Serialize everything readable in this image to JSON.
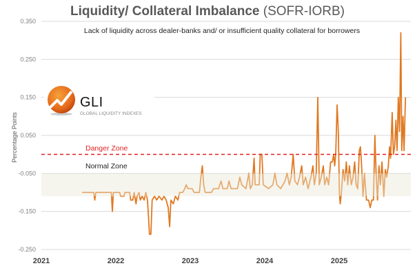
{
  "chart_data": {
    "type": "line",
    "title": "Liquidity/ Collateral Imbalance",
    "title_suffix": "(SOFR-IORB)",
    "subtitle": "Lack of liquidity across dealer-banks and/ or insufficient quality collateral for borrowers",
    "xlabel": "",
    "ylabel": "Percentage Points",
    "xlim": [
      "2021-01-01",
      "2026-01-01"
    ],
    "ylim": [
      -0.25,
      0.35
    ],
    "x_ticks": [
      "2021",
      "2022",
      "2023",
      "2024",
      "2025"
    ],
    "y_ticks": [
      "0.350",
      "0.250",
      "0.150",
      "0.050",
      "-0.050",
      "-0.150",
      "-0.250"
    ],
    "y_tick_values": [
      0.35,
      0.25,
      0.15,
      0.05,
      -0.05,
      -0.15,
      -0.25
    ],
    "grid": "horizontal",
    "legend": "none",
    "colors": {
      "series": "#e07820",
      "danger": "#e02020",
      "band": "#ebe8d8",
      "grid": "#d9d9d9",
      "title": "#595959"
    },
    "annotations": {
      "danger_zone": {
        "label": "Danger Zone",
        "y": 0.0
      },
      "normal_zone": {
        "label": "Normal Zone",
        "y_range": [
          -0.11,
          -0.05
        ]
      }
    },
    "series": [
      {
        "points": [
          [
            "2021-07-20",
            -0.1
          ],
          [
            "2021-09-15",
            -0.1
          ],
          [
            "2021-09-20",
            -0.12
          ],
          [
            "2021-09-25",
            -0.1
          ],
          [
            "2021-12-10",
            -0.1
          ],
          [
            "2021-12-15",
            -0.15
          ],
          [
            "2021-12-20",
            -0.1
          ],
          [
            "2022-01-20",
            -0.1
          ],
          [
            "2022-01-25",
            -0.11
          ],
          [
            "2022-02-10",
            -0.11
          ],
          [
            "2022-02-15",
            -0.1
          ],
          [
            "2022-03-10",
            -0.1
          ],
          [
            "2022-03-15",
            -0.12
          ],
          [
            "2022-03-25",
            -0.12
          ],
          [
            "2022-04-01",
            -0.1
          ],
          [
            "2022-04-10",
            -0.13
          ],
          [
            "2022-04-15",
            -0.11
          ],
          [
            "2022-04-25",
            -0.1
          ],
          [
            "2022-05-01",
            -0.12
          ],
          [
            "2022-05-10",
            -0.11
          ],
          [
            "2022-05-20",
            -0.12
          ],
          [
            "2022-05-28",
            -0.1
          ],
          [
            "2022-06-05",
            -0.12
          ],
          [
            "2022-06-10",
            -0.16
          ],
          [
            "2022-06-15",
            -0.21
          ],
          [
            "2022-06-22",
            -0.21
          ],
          [
            "2022-06-28",
            -0.12
          ],
          [
            "2022-07-10",
            -0.11
          ],
          [
            "2022-07-20",
            -0.12
          ],
          [
            "2022-08-01",
            -0.11
          ],
          [
            "2022-08-15",
            -0.12
          ],
          [
            "2022-08-25",
            -0.11
          ],
          [
            "2022-09-05",
            -0.12
          ],
          [
            "2022-09-15",
            -0.14
          ],
          [
            "2022-09-22",
            -0.19
          ],
          [
            "2022-09-28",
            -0.12
          ],
          [
            "2022-10-10",
            -0.13
          ],
          [
            "2022-10-20",
            -0.11
          ],
          [
            "2022-11-01",
            -0.12
          ],
          [
            "2022-11-10",
            -0.1
          ],
          [
            "2022-11-25",
            -0.1
          ],
          [
            "2022-12-05",
            -0.09
          ],
          [
            "2022-12-12",
            -0.08
          ],
          [
            "2022-12-20",
            -0.09
          ],
          [
            "2023-01-10",
            -0.09
          ],
          [
            "2023-01-20",
            -0.1
          ],
          [
            "2023-02-15",
            -0.1
          ],
          [
            "2023-02-22",
            -0.06
          ],
          [
            "2023-03-01",
            -0.03
          ],
          [
            "2023-03-08",
            -0.08
          ],
          [
            "2023-03-15",
            -0.1
          ],
          [
            "2023-04-15",
            -0.1
          ],
          [
            "2023-04-25",
            -0.09
          ],
          [
            "2023-05-20",
            -0.09
          ],
          [
            "2023-06-01",
            -0.07
          ],
          [
            "2023-06-10",
            -0.09
          ],
          [
            "2023-07-01",
            -0.09
          ],
          [
            "2023-07-10",
            -0.07
          ],
          [
            "2023-07-20",
            -0.09
          ],
          [
            "2023-08-20",
            -0.09
          ],
          [
            "2023-09-01",
            -0.06
          ],
          [
            "2023-09-10",
            -0.08
          ],
          [
            "2023-10-01",
            -0.09
          ],
          [
            "2023-10-15",
            -0.05
          ],
          [
            "2023-10-22",
            -0.09
          ],
          [
            "2023-11-01",
            -0.08
          ],
          [
            "2023-11-10",
            -0.01
          ],
          [
            "2023-11-15",
            -0.08
          ],
          [
            "2023-12-05",
            -0.08
          ],
          [
            "2023-12-10",
            0.0
          ],
          [
            "2023-12-18",
            0.0
          ],
          [
            "2023-12-25",
            -0.08
          ],
          [
            "2024-01-20",
            -0.09
          ],
          [
            "2024-02-10",
            -0.08
          ],
          [
            "2024-02-20",
            -0.05
          ],
          [
            "2024-03-01",
            -0.08
          ],
          [
            "2024-03-20",
            -0.09
          ],
          [
            "2024-04-10",
            -0.07
          ],
          [
            "2024-04-20",
            -0.05
          ],
          [
            "2024-05-01",
            -0.08
          ],
          [
            "2024-05-10",
            -0.06
          ],
          [
            "2024-05-20",
            0.0
          ],
          [
            "2024-05-28",
            -0.07
          ],
          [
            "2024-06-10",
            -0.08
          ],
          [
            "2024-06-20",
            -0.06
          ],
          [
            "2024-07-01",
            -0.03
          ],
          [
            "2024-07-08",
            -0.08
          ],
          [
            "2024-07-20",
            -0.06
          ],
          [
            "2024-08-01",
            -0.09
          ],
          [
            "2024-08-15",
            -0.06
          ],
          [
            "2024-08-25",
            -0.03
          ],
          [
            "2024-09-01",
            -0.08
          ],
          [
            "2024-09-10",
            -0.05
          ],
          [
            "2024-09-18",
            0.15
          ],
          [
            "2024-09-25",
            -0.08
          ],
          [
            "2024-10-05",
            -0.06
          ],
          [
            "2024-10-15",
            -0.03
          ],
          [
            "2024-10-22",
            -0.08
          ],
          [
            "2024-11-01",
            -0.06
          ],
          [
            "2024-11-10",
            -0.08
          ],
          [
            "2024-11-20",
            -0.02
          ],
          [
            "2024-11-28",
            -0.02
          ],
          [
            "2024-12-05",
            0.0
          ],
          [
            "2024-12-10",
            -0.03
          ],
          [
            "2024-12-15",
            0.0
          ],
          [
            "2024-12-22",
            0.13
          ],
          [
            "2024-12-28",
            0.06
          ],
          [
            "2025-01-02",
            -0.1
          ],
          [
            "2025-01-06",
            -0.13
          ],
          [
            "2025-01-12",
            -0.1
          ],
          [
            "2025-01-20",
            -0.04
          ],
          [
            "2025-01-28",
            -0.07
          ],
          [
            "2025-02-05",
            -0.02
          ],
          [
            "2025-02-12",
            -0.08
          ],
          [
            "2025-02-20",
            -0.03
          ],
          [
            "2025-03-01",
            -0.08
          ],
          [
            "2025-03-10",
            -0.06
          ],
          [
            "2025-03-18",
            -0.02
          ],
          [
            "2025-03-25",
            -0.08
          ],
          [
            "2025-04-02",
            -0.09
          ],
          [
            "2025-04-10",
            0.01
          ],
          [
            "2025-04-15",
            0.02
          ],
          [
            "2025-04-20",
            -0.02
          ],
          [
            "2025-04-28",
            -0.11
          ],
          [
            "2025-05-05",
            -0.05
          ],
          [
            "2025-05-15",
            -0.12
          ],
          [
            "2025-05-25",
            -0.12
          ],
          [
            "2025-06-02",
            -0.14
          ],
          [
            "2025-06-10",
            -0.12
          ],
          [
            "2025-06-18",
            -0.12
          ],
          [
            "2025-06-25",
            0.05
          ],
          [
            "2025-07-01",
            -0.05
          ],
          [
            "2025-07-08",
            -0.12
          ],
          [
            "2025-07-15",
            -0.03
          ],
          [
            "2025-07-22",
            -0.08
          ],
          [
            "2025-07-30",
            -0.02
          ],
          [
            "2025-08-08",
            -0.11
          ],
          [
            "2025-08-15",
            -0.04
          ],
          [
            "2025-08-22",
            -0.06
          ],
          [
            "2025-08-30",
            -0.03
          ],
          [
            "2025-09-05",
            0.02
          ],
          [
            "2025-09-10",
            -0.01
          ],
          [
            "2025-09-18",
            0.11
          ],
          [
            "2025-09-24",
            0.0
          ],
          [
            "2025-09-30",
            0.02
          ],
          [
            "2025-10-06",
            0.09
          ],
          [
            "2025-10-12",
            0.01
          ],
          [
            "2025-10-18",
            0.15
          ],
          [
            "2025-10-24",
            0.06
          ],
          [
            "2025-10-30",
            0.32
          ],
          [
            "2025-11-04",
            0.01
          ],
          [
            "2025-11-10",
            0.1
          ],
          [
            "2025-11-15",
            0.01
          ],
          [
            "2025-11-22",
            0.15
          ]
        ]
      }
    ]
  },
  "logo": {
    "name": "GLI",
    "tagline": "GLOBAL LIQUIDITY INDEXES",
    "icon": "rising-chart-orb-icon"
  }
}
